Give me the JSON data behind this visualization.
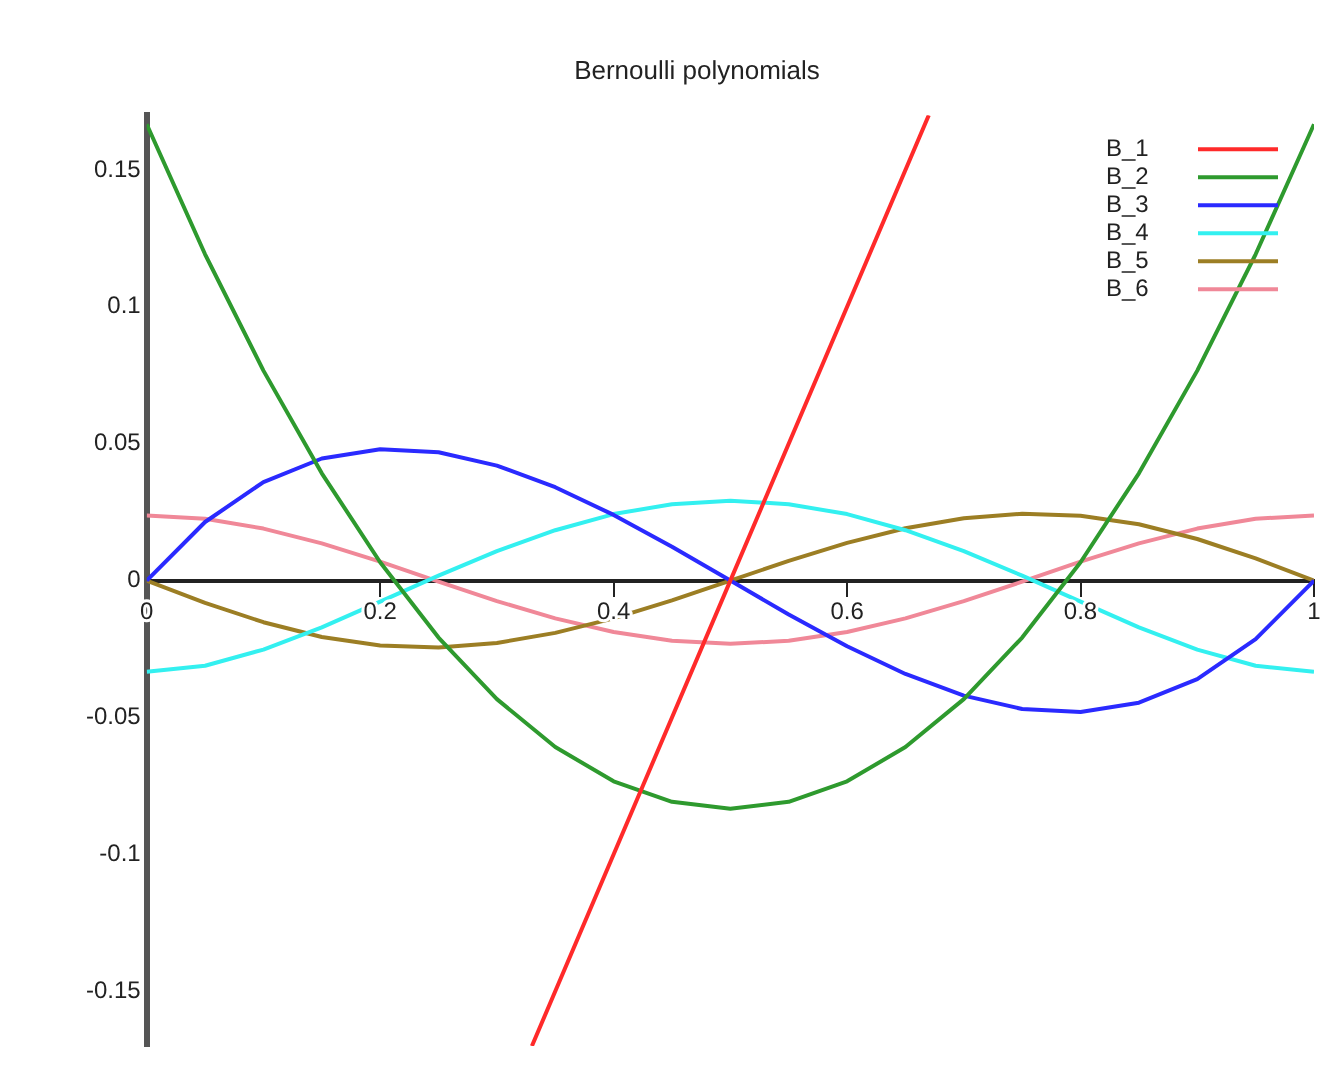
{
  "chart_data": {
    "type": "line",
    "title": "Bernoulli polynomials",
    "x": [
      0,
      0.05,
      0.1,
      0.15,
      0.2,
      0.25,
      0.3,
      0.35,
      0.4,
      0.45,
      0.5,
      0.55,
      0.6,
      0.65,
      0.7,
      0.75,
      0.8,
      0.85,
      0.9,
      0.95,
      1
    ],
    "series": [
      {
        "name": "B_1",
        "color": "#ff2a2a",
        "x": [
          0.33,
          0.5,
          0.67
        ],
        "values": [
          -0.17,
          0,
          0.17
        ]
      },
      {
        "name": "B_2",
        "color": "#2e9a2e",
        "values": [
          0.1667,
          0.1192,
          0.0767,
          0.0392,
          0.0067,
          -0.0208,
          -0.0433,
          -0.0608,
          -0.0733,
          -0.0808,
          -0.0833,
          -0.0808,
          -0.0733,
          -0.0608,
          -0.0433,
          -0.0208,
          0.0067,
          0.0392,
          0.0767,
          0.1192,
          0.1667
        ]
      },
      {
        "name": "B_3",
        "color": "#2a2aff",
        "values": [
          0,
          0.0214,
          0.036,
          0.0446,
          0.048,
          0.0469,
          0.042,
          0.0341,
          0.024,
          0.0124,
          0,
          -0.0124,
          -0.024,
          -0.0341,
          -0.042,
          -0.0469,
          -0.048,
          -0.0446,
          -0.036,
          -0.0214,
          0
        ]
      },
      {
        "name": "B_4",
        "color": "#33f0f0",
        "values": [
          -0.0333,
          -0.0311,
          -0.0252,
          -0.0171,
          -0.0077,
          0.0018,
          0.0108,
          0.0184,
          0.0243,
          0.0279,
          0.0292,
          0.0279,
          0.0243,
          0.0184,
          0.0108,
          0.0018,
          -0.0077,
          -0.0171,
          -0.0252,
          -0.0311,
          -0.0333
        ]
      },
      {
        "name": "B_5",
        "color": "#9c7e24",
        "values": [
          0,
          -0.0081,
          -0.0152,
          -0.0206,
          -0.0237,
          -0.0244,
          -0.0228,
          -0.0191,
          -0.0138,
          -0.0072,
          0,
          0.0072,
          0.0138,
          0.0191,
          0.0228,
          0.0244,
          0.0237,
          0.0206,
          0.0152,
          0.0081,
          0
        ]
      },
      {
        "name": "B_6",
        "color": "#f08898",
        "values": [
          0.0238,
          0.0226,
          0.019,
          0.0136,
          0.0069,
          -0.0004,
          -0.0075,
          -0.0138,
          -0.0188,
          -0.022,
          -0.0231,
          -0.022,
          -0.0188,
          -0.0138,
          -0.0075,
          -0.0004,
          0.0069,
          0.0136,
          0.019,
          0.0226,
          0.0238
        ]
      }
    ],
    "xlim": [
      0,
      1
    ],
    "xticks": [
      0,
      0.2,
      0.4,
      0.6,
      0.8,
      1
    ],
    "ylim": [
      -0.17,
      0.17
    ],
    "yticks": [
      -0.15,
      -0.1,
      -0.05,
      0,
      0.05,
      0.1,
      0.15
    ],
    "grid": false,
    "legend": "top right",
    "marker": "none",
    "line_style": "solid"
  }
}
